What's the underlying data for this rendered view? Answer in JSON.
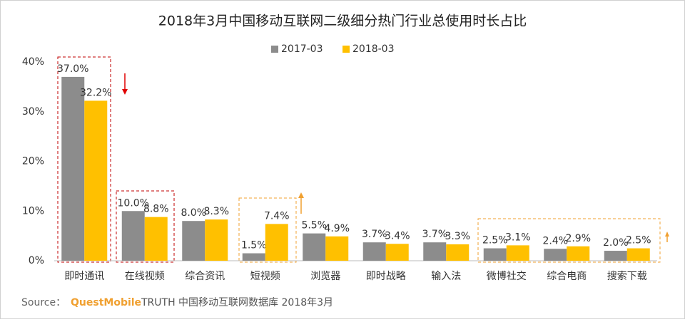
{
  "chart_data": {
    "type": "bar",
    "title": "2018年3月中国移动互联网二级细分热门行业总使用时长占比",
    "categories": [
      "即时通讯",
      "在线视频",
      "综合资讯",
      "短视频",
      "浏览器",
      "即时战略",
      "输入法",
      "微博社交",
      "综合电商",
      "搜索下载"
    ],
    "series": [
      {
        "name": "2017-03",
        "color": "#8c8c8c",
        "values": [
          37.0,
          10.0,
          8.0,
          1.5,
          5.5,
          3.7,
          3.7,
          2.5,
          2.4,
          2.0
        ],
        "value_labels": [
          "37.0%",
          "10.0%",
          "8.0%",
          "1.5%",
          "5.5%",
          "3.7%",
          "3.7%",
          "2.5%",
          "2.4%",
          "2.0%"
        ]
      },
      {
        "name": "2018-03",
        "color": "#ffc000",
        "values": [
          32.2,
          8.8,
          8.3,
          7.4,
          4.9,
          3.4,
          3.3,
          3.1,
          2.9,
          2.5
        ],
        "value_labels": [
          "32.2%",
          "8.8%",
          "8.3%",
          "7.4%",
          "4.9%",
          "3.4%",
          "3.3%",
          "3.1%",
          "2.9%",
          "2.5%"
        ]
      }
    ],
    "ylim": [
      0,
      40
    ],
    "yticks": [
      {
        "value": 0,
        "label": "0%"
      },
      {
        "value": 10,
        "label": "10%"
      },
      {
        "value": 20,
        "label": "20%"
      },
      {
        "value": 30,
        "label": "30%"
      },
      {
        "value": 40,
        "label": "40%"
      }
    ],
    "grid": false,
    "legend": "top",
    "source": {
      "label": "Source：",
      "brand": "QuestMobile",
      "text": "TRUTH 中国移动互联网数据库 2018年3月"
    }
  }
}
